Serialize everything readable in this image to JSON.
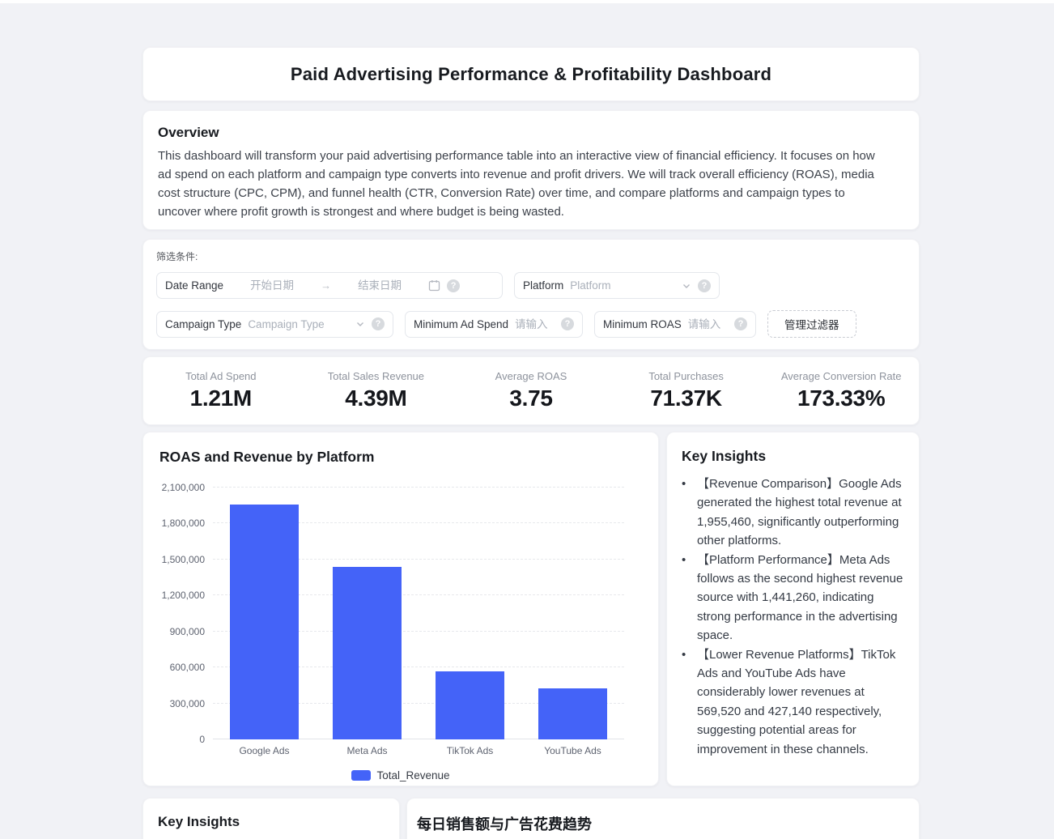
{
  "page": {
    "title": "Paid Advertising Performance & Profitability Dashboard"
  },
  "overview": {
    "heading": "Overview",
    "body": "This dashboard will transform your paid advertising performance table into an interactive view of financial efficiency. It focuses on how ad spend on each platform and campaign type converts into revenue and profit drivers. We will track overall efficiency (ROAS), media cost structure (CPC, CPM), and funnel health (CTR, Conversion Rate) over time, and compare platforms and campaign types to uncover where profit growth is strongest and where budget is being wasted.",
    "wasted_line": "to uncover where profit growth is strongest and where budget is being wasted."
  },
  "filters": {
    "section_label": "筛选条件:",
    "help_glyph": "?",
    "date_range": {
      "label": "Date Range",
      "start_placeholder": "开始日期",
      "arrow": "→",
      "end_placeholder": "结束日期"
    },
    "platform": {
      "label": "Platform",
      "placeholder": "Platform"
    },
    "campaign_type": {
      "label": "Campaign Type",
      "placeholder": "Campaign Type"
    },
    "min_ad_spend": {
      "label": "Minimum Ad Spend",
      "placeholder": "请输入"
    },
    "min_roas": {
      "label": "Minimum ROAS",
      "placeholder": "请输入"
    },
    "manage_button": "管理过滤器"
  },
  "kpis": [
    {
      "label": "Total Ad Spend",
      "value": "1.21M"
    },
    {
      "label": "Total Sales Revenue",
      "value": "4.39M"
    },
    {
      "label": "Average ROAS",
      "value": "3.75"
    },
    {
      "label": "Total Purchases",
      "value": "71.37K"
    },
    {
      "label": "Average Conversion Rate",
      "value": "173.33%"
    }
  ],
  "chart_data": {
    "type": "bar",
    "title": "ROAS and Revenue by Platform",
    "categories": [
      "Google Ads",
      "Meta Ads",
      "TikTok Ads",
      "YouTube Ads"
    ],
    "series": [
      {
        "name": "Total_Revenue",
        "values": [
          1955460,
          1441260,
          569520,
          427140
        ]
      }
    ],
    "xlabel": "",
    "ylabel": "",
    "ylim": [
      0,
      2100000
    ],
    "yticks": [
      0,
      300000,
      600000,
      900000,
      1200000,
      1500000,
      1800000,
      2100000
    ],
    "grid": true,
    "legend_position": "bottom",
    "bar_color": "#4463f8"
  },
  "insights": {
    "heading": "Key Insights",
    "bullet_glyph": "•",
    "bullets": [
      "【Revenue Comparison】Google Ads generated the highest total revenue at 1,955,460, significantly outperforming other platforms.",
      "【Platform Performance】Meta Ads follows as the second highest revenue source with 1,441,260, indicating strong performance in the advertising space.",
      "【Lower Revenue Platforms】TikTok Ads and YouTube Ads have considerably lower revenues at 569,520 and 427,140 respectively, suggesting potential areas for improvement in these channels."
    ]
  },
  "bottom": {
    "left_heading": "Key Insights",
    "right_heading": "每日销售额与广告花费趋势"
  },
  "colors": {
    "accent": "#4463f8",
    "page_bg": "#f1f2f6",
    "card_bg": "#ffffff"
  }
}
